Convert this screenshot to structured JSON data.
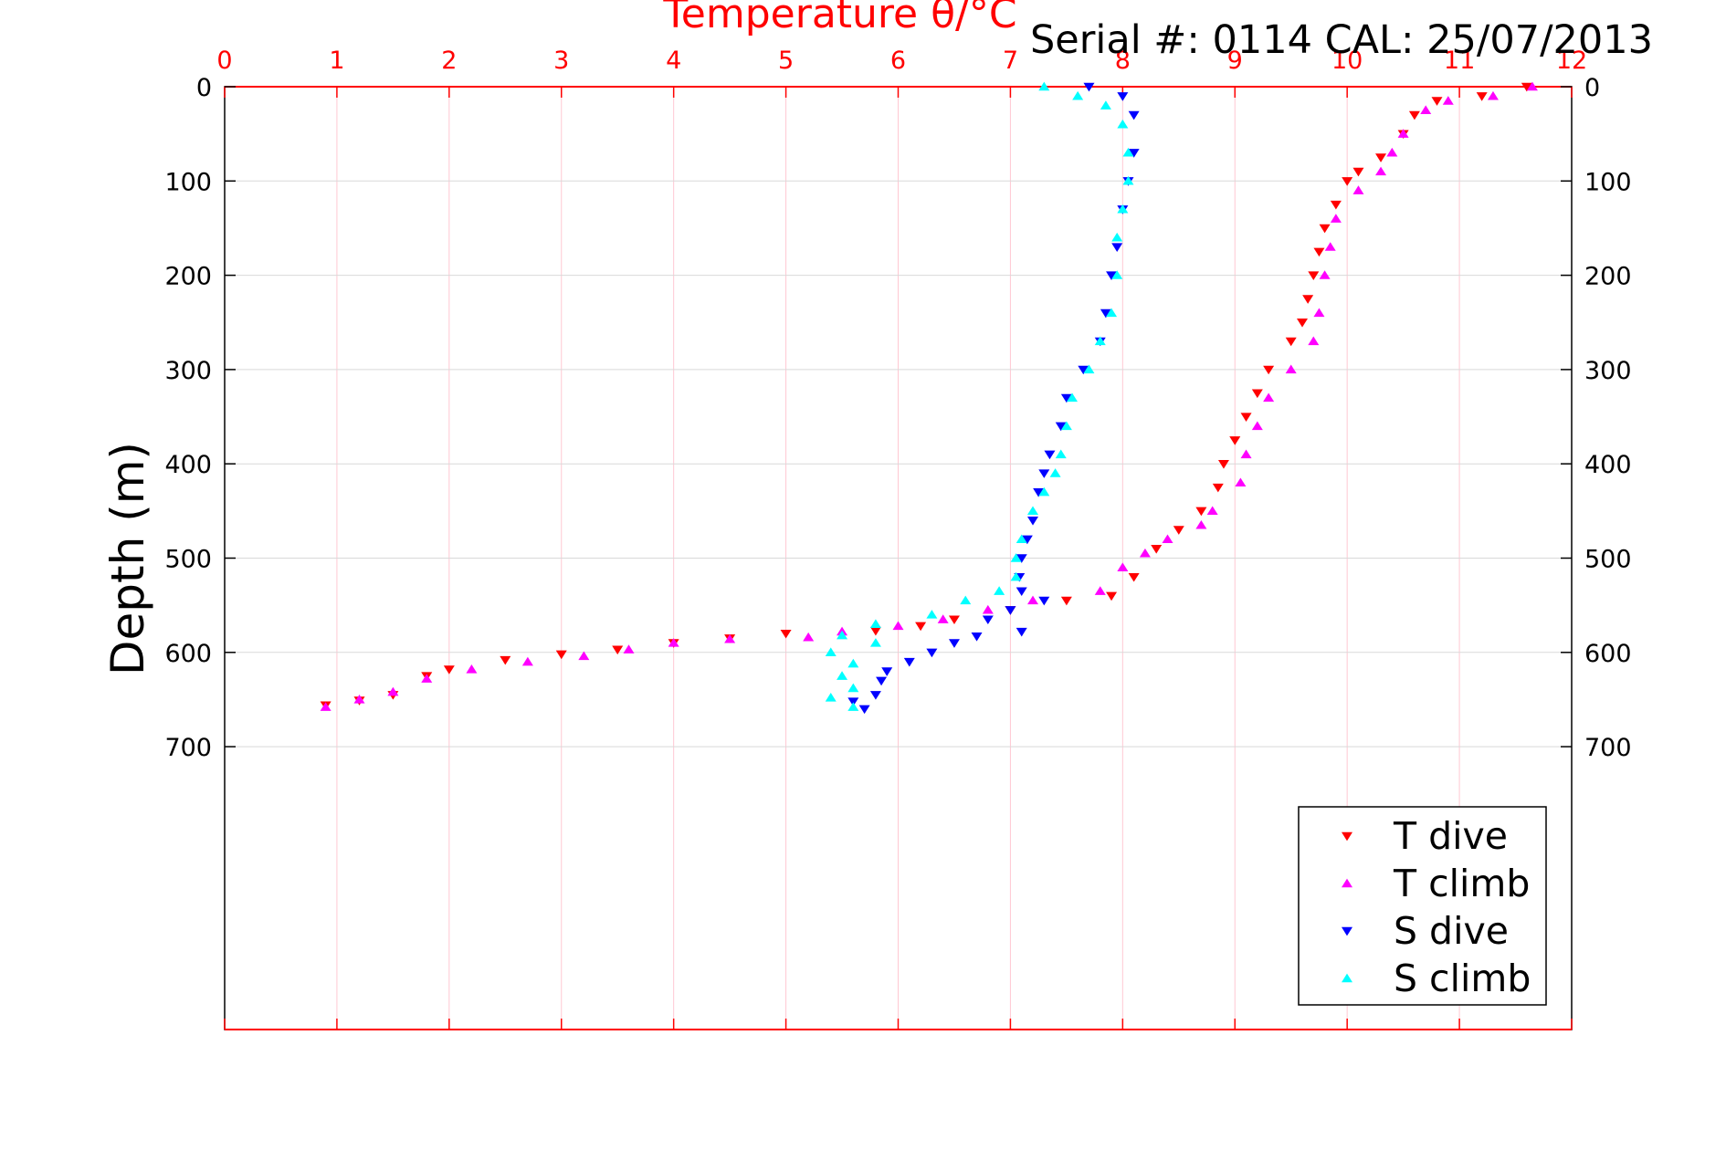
{
  "header": {
    "serial_text": "Serial #: 0114  CAL: 25/07/2013"
  },
  "chart_data": {
    "type": "scatter",
    "title": "Temperature θ/°C",
    "xlabel": "Temperature θ/°C",
    "ylabel": "Depth (m)",
    "xlim": [
      0,
      12
    ],
    "ylim": [
      1000,
      0
    ],
    "y_inverted": true,
    "grid": true,
    "x_ticks": [
      0,
      1,
      2,
      3,
      4,
      5,
      6,
      7,
      8,
      9,
      10,
      11,
      12
    ],
    "x_tick_labels": [
      "0",
      "1",
      "2",
      "3",
      "4",
      "5",
      "6",
      "7",
      "8",
      "9",
      "10",
      "11",
      "12"
    ],
    "y_ticks": [
      0,
      100,
      200,
      300,
      400,
      500,
      600,
      700
    ],
    "y_tick_labels": [
      "0",
      "100",
      "200",
      "300",
      "400",
      "500",
      "600",
      "700"
    ],
    "legend_position": "bottom-right",
    "series": [
      {
        "name": "T dive",
        "marker": "triangle-down",
        "color": "#ff0000",
        "points": [
          [
            11.6,
            0
          ],
          [
            11.2,
            10
          ],
          [
            10.8,
            15
          ],
          [
            10.6,
            30
          ],
          [
            10.5,
            50
          ],
          [
            10.3,
            75
          ],
          [
            10.1,
            90
          ],
          [
            10.0,
            100
          ],
          [
            9.9,
            125
          ],
          [
            9.8,
            150
          ],
          [
            9.75,
            175
          ],
          [
            9.7,
            200
          ],
          [
            9.65,
            225
          ],
          [
            9.6,
            250
          ],
          [
            9.5,
            270
          ],
          [
            9.3,
            300
          ],
          [
            9.2,
            325
          ],
          [
            9.1,
            350
          ],
          [
            9.0,
            375
          ],
          [
            8.9,
            400
          ],
          [
            8.85,
            425
          ],
          [
            8.7,
            450
          ],
          [
            8.5,
            470
          ],
          [
            8.3,
            490
          ],
          [
            8.1,
            520
          ],
          [
            7.9,
            540
          ],
          [
            7.5,
            545
          ],
          [
            7.0,
            555
          ],
          [
            6.5,
            565
          ],
          [
            6.2,
            572
          ],
          [
            5.8,
            577
          ],
          [
            5.0,
            580
          ],
          [
            4.5,
            585
          ],
          [
            4.0,
            590
          ],
          [
            3.5,
            597
          ],
          [
            3.0,
            602
          ],
          [
            2.5,
            608
          ],
          [
            2.0,
            618
          ],
          [
            1.8,
            625
          ],
          [
            1.5,
            645
          ],
          [
            1.2,
            651
          ],
          [
            0.9,
            656
          ]
        ]
      },
      {
        "name": "T climb",
        "marker": "triangle-up",
        "color": "#ff00ff",
        "points": [
          [
            11.65,
            0
          ],
          [
            11.3,
            10
          ],
          [
            10.9,
            15
          ],
          [
            10.7,
            25
          ],
          [
            10.5,
            50
          ],
          [
            10.4,
            70
          ],
          [
            10.3,
            90
          ],
          [
            10.1,
            110
          ],
          [
            9.9,
            140
          ],
          [
            9.85,
            170
          ],
          [
            9.8,
            200
          ],
          [
            9.75,
            240
          ],
          [
            9.7,
            270
          ],
          [
            9.5,
            300
          ],
          [
            9.3,
            330
          ],
          [
            9.2,
            360
          ],
          [
            9.1,
            390
          ],
          [
            9.05,
            420
          ],
          [
            8.8,
            450
          ],
          [
            8.7,
            465
          ],
          [
            8.4,
            480
          ],
          [
            8.2,
            495
          ],
          [
            8.0,
            510
          ],
          [
            7.8,
            535
          ],
          [
            7.2,
            545
          ],
          [
            6.8,
            555
          ],
          [
            6.4,
            565
          ],
          [
            6.0,
            572
          ],
          [
            5.5,
            578
          ],
          [
            5.2,
            584
          ],
          [
            4.5,
            586
          ],
          [
            4.0,
            590
          ],
          [
            3.6,
            597
          ],
          [
            3.2,
            604
          ],
          [
            2.7,
            610
          ],
          [
            2.2,
            618
          ],
          [
            1.8,
            628
          ],
          [
            1.5,
            642
          ],
          [
            1.2,
            650
          ],
          [
            0.9,
            658
          ]
        ]
      },
      {
        "name": "S dive",
        "marker": "triangle-down",
        "color": "#0000ff",
        "points": [
          [
            7.7,
            0
          ],
          [
            8.0,
            10
          ],
          [
            8.1,
            30
          ],
          [
            8.1,
            70
          ],
          [
            8.05,
            100
          ],
          [
            8.0,
            130
          ],
          [
            7.95,
            170
          ],
          [
            7.9,
            200
          ],
          [
            7.85,
            240
          ],
          [
            7.8,
            270
          ],
          [
            7.65,
            300
          ],
          [
            7.5,
            330
          ],
          [
            7.45,
            360
          ],
          [
            7.35,
            390
          ],
          [
            7.3,
            410
          ],
          [
            7.25,
            430
          ],
          [
            7.2,
            460
          ],
          [
            7.15,
            480
          ],
          [
            7.1,
            500
          ],
          [
            7.08,
            520
          ],
          [
            7.1,
            535
          ],
          [
            7.3,
            545
          ],
          [
            7.0,
            555
          ],
          [
            6.8,
            565
          ],
          [
            7.1,
            578
          ],
          [
            6.7,
            583
          ],
          [
            6.5,
            590
          ],
          [
            6.3,
            600
          ],
          [
            6.1,
            610
          ],
          [
            5.9,
            620
          ],
          [
            5.85,
            630
          ],
          [
            5.8,
            645
          ],
          [
            5.6,
            652
          ],
          [
            5.7,
            660
          ]
        ]
      },
      {
        "name": "S climb",
        "marker": "triangle-up",
        "color": "#00ffff",
        "points": [
          [
            7.3,
            0
          ],
          [
            7.6,
            10
          ],
          [
            7.85,
            20
          ],
          [
            8.0,
            40
          ],
          [
            8.05,
            70
          ],
          [
            8.05,
            100
          ],
          [
            8.0,
            130
          ],
          [
            7.95,
            160
          ],
          [
            7.95,
            200
          ],
          [
            7.9,
            240
          ],
          [
            7.8,
            270
          ],
          [
            7.7,
            300
          ],
          [
            7.55,
            330
          ],
          [
            7.5,
            360
          ],
          [
            7.45,
            390
          ],
          [
            7.4,
            410
          ],
          [
            7.3,
            430
          ],
          [
            7.2,
            450
          ],
          [
            7.1,
            480
          ],
          [
            7.05,
            500
          ],
          [
            7.05,
            520
          ],
          [
            6.9,
            535
          ],
          [
            6.6,
            545
          ],
          [
            6.3,
            560
          ],
          [
            5.8,
            570
          ],
          [
            5.5,
            582
          ],
          [
            5.8,
            590
          ],
          [
            5.4,
            600
          ],
          [
            5.6,
            612
          ],
          [
            5.5,
            625
          ],
          [
            5.6,
            638
          ],
          [
            5.4,
            648
          ],
          [
            5.6,
            658
          ]
        ]
      }
    ]
  }
}
